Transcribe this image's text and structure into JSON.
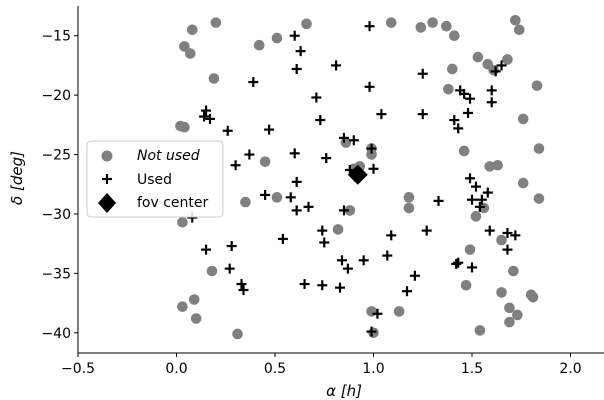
{
  "chart_data": {
    "type": "scatter",
    "xlabel": "α [h]",
    "ylabel": "δ [deg]",
    "xlim": [
      -0.5,
      2.17
    ],
    "ylim": [
      -41.7,
      -12.5
    ],
    "xticks": [
      -0.5,
      0.0,
      0.5,
      1.0,
      1.5,
      2.0
    ],
    "xtick_labels": [
      "−0.5",
      "0.0",
      "0.5",
      "1.0",
      "1.5",
      "2.0"
    ],
    "yticks": [
      -15,
      -20,
      -25,
      -30,
      -35,
      -40
    ],
    "ytick_labels": [
      "−15",
      "−20",
      "−25",
      "−30",
      "−35",
      "−40"
    ],
    "legend_position": "center-left",
    "colors": {
      "not_used": "#808080",
      "used": "#000000",
      "center": "#000000"
    },
    "series": [
      {
        "name": "Not used",
        "marker": "circle",
        "points": [
          [
            0.08,
            -14.5
          ],
          [
            0.2,
            -13.9
          ],
          [
            0.04,
            -15.9
          ],
          [
            0.07,
            -16.5
          ],
          [
            0.19,
            -18.6
          ],
          [
            0.02,
            -22.6
          ],
          [
            0.04,
            -22.7
          ],
          [
            0.03,
            -30.7
          ],
          [
            0.35,
            -29.0
          ],
          [
            0.42,
            -15.8
          ],
          [
            0.51,
            -15.2
          ],
          [
            0.66,
            -14.0
          ],
          [
            0.45,
            -25.6
          ],
          [
            0.51,
            -28.6
          ],
          [
            0.86,
            -24.0
          ],
          [
            0.88,
            -29.7
          ],
          [
            0.82,
            -31.3
          ],
          [
            0.93,
            -26.0
          ],
          [
            0.99,
            -24.5
          ],
          [
            0.99,
            -25.0
          ],
          [
            0.99,
            -38.2
          ],
          [
            1.0,
            -40.0
          ],
          [
            1.09,
            -13.9
          ],
          [
            1.13,
            -38.2
          ],
          [
            1.18,
            -29.5
          ],
          [
            1.24,
            -14.3
          ],
          [
            1.3,
            -13.9
          ],
          [
            1.37,
            -14.2
          ],
          [
            1.38,
            -19.5
          ],
          [
            1.41,
            -15.0
          ],
          [
            1.4,
            -17.8
          ],
          [
            1.46,
            -24.7
          ],
          [
            1.47,
            -36.0
          ],
          [
            1.49,
            -33.0
          ],
          [
            1.52,
            -30.2
          ],
          [
            1.54,
            -39.8
          ],
          [
            1.53,
            -16.8
          ],
          [
            1.58,
            -17.4
          ],
          [
            1.61,
            -17.9
          ],
          [
            1.63,
            -25.9
          ],
          [
            1.59,
            -26.0
          ],
          [
            1.65,
            -32.2
          ],
          [
            1.65,
            -36.6
          ],
          [
            1.68,
            -17.0
          ],
          [
            1.69,
            -37.9
          ],
          [
            1.69,
            -39.1
          ],
          [
            1.71,
            -34.8
          ],
          [
            1.72,
            -13.7
          ],
          [
            1.73,
            -38.5
          ],
          [
            1.74,
            -14.5
          ],
          [
            1.76,
            -22.0
          ],
          [
            1.76,
            -27.4
          ],
          [
            1.81,
            -37.0
          ],
          [
            1.8,
            -36.8
          ],
          [
            1.83,
            -19.2
          ],
          [
            1.84,
            -24.5
          ],
          [
            1.84,
            -28.7
          ],
          [
            0.1,
            -38.8
          ],
          [
            0.09,
            -37.2
          ],
          [
            0.03,
            -37.8
          ],
          [
            0.18,
            -34.8
          ],
          [
            0.31,
            -40.1
          ],
          [
            1.18,
            -28.6
          ],
          [
            1.56,
            -29.5
          ],
          [
            0.9,
            -26.2
          ]
        ]
      },
      {
        "name": "Used",
        "marker": "plus",
        "points": [
          [
            0.98,
            -14.2
          ],
          [
            0.6,
            -15.0
          ],
          [
            0.63,
            -16.3
          ],
          [
            0.61,
            -17.8
          ],
          [
            0.81,
            -17.5
          ],
          [
            0.98,
            -19.3
          ],
          [
            0.39,
            -18.9
          ],
          [
            0.71,
            -20.2
          ],
          [
            0.73,
            -22.1
          ],
          [
            0.15,
            -21.3
          ],
          [
            0.14,
            -21.8
          ],
          [
            0.17,
            -22.0
          ],
          [
            0.26,
            -23.0
          ],
          [
            0.47,
            -22.9
          ],
          [
            0.85,
            -23.6
          ],
          [
            0.9,
            -23.8
          ],
          [
            1.04,
            -21.6
          ],
          [
            0.99,
            -24.5
          ],
          [
            0.76,
            -25.3
          ],
          [
            0.6,
            -24.9
          ],
          [
            0.37,
            -25.0
          ],
          [
            0.3,
            -25.9
          ],
          [
            0.45,
            -28.4
          ],
          [
            0.58,
            -28.6
          ],
          [
            0.61,
            -29.7
          ],
          [
            0.61,
            -27.3
          ],
          [
            0.67,
            -29.4
          ],
          [
            0.85,
            -29.7
          ],
          [
            0.88,
            -26.3
          ],
          [
            1.0,
            -26.2
          ],
          [
            1.25,
            -18.2
          ],
          [
            1.25,
            -21.6
          ],
          [
            1.27,
            -31.4
          ],
          [
            1.33,
            -28.9
          ],
          [
            1.41,
            -22.1
          ],
          [
            1.43,
            -22.8
          ],
          [
            1.44,
            -19.6
          ],
          [
            1.46,
            -19.9
          ],
          [
            1.49,
            -20.3
          ],
          [
            1.48,
            -21.5
          ],
          [
            1.6,
            -20.6
          ],
          [
            1.6,
            -19.6
          ],
          [
            1.62,
            -18.0
          ],
          [
            1.65,
            -17.5
          ],
          [
            1.49,
            -27.0
          ],
          [
            1.52,
            -27.7
          ],
          [
            1.54,
            -29.4
          ],
          [
            1.55,
            -28.8
          ],
          [
            1.59,
            -31.4
          ],
          [
            1.58,
            -28.2
          ],
          [
            1.5,
            -28.8
          ],
          [
            1.43,
            -34.1
          ],
          [
            1.42,
            -34.2
          ],
          [
            1.5,
            -34.5
          ],
          [
            1.68,
            -31.6
          ],
          [
            1.68,
            -33.0
          ],
          [
            1.72,
            -31.8
          ],
          [
            0.74,
            -31.4
          ],
          [
            0.75,
            -32.4
          ],
          [
            0.84,
            -33.9
          ],
          [
            0.87,
            -34.6
          ],
          [
            0.95,
            -33.9
          ],
          [
            1.07,
            -33.5
          ],
          [
            1.09,
            -31.8
          ],
          [
            1.21,
            -35.2
          ],
          [
            1.17,
            -36.5
          ],
          [
            0.99,
            -39.9
          ],
          [
            0.83,
            -36.2
          ],
          [
            0.74,
            -36.0
          ],
          [
            0.65,
            -35.9
          ],
          [
            0.54,
            -32.1
          ],
          [
            0.28,
            -32.7
          ],
          [
            0.27,
            -34.6
          ],
          [
            0.33,
            -35.9
          ],
          [
            0.34,
            -36.4
          ],
          [
            0.08,
            -30.3
          ],
          [
            0.15,
            -33.0
          ],
          [
            1.02,
            -38.4
          ]
        ]
      },
      {
        "name": "fov center",
        "marker": "diamond",
        "points": [
          [
            0.92,
            -26.7
          ]
        ]
      }
    ]
  }
}
